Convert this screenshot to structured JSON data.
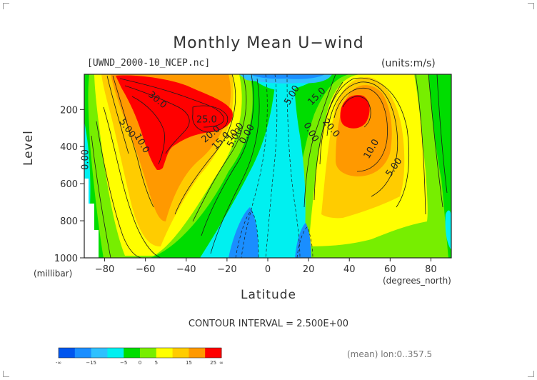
{
  "title": "Monthly Mean U−wind",
  "file_label": "[UWND_2000-10_NCEP.nc]",
  "units_label": "(units:m/s)",
  "y_axis": {
    "label": "Level",
    "unit": "(millibar)",
    "ticks": [
      "200",
      "400",
      "600",
      "800",
      "1000"
    ]
  },
  "x_axis": {
    "label": "Latitude",
    "unit": "(degrees_north)",
    "ticks": [
      "−80",
      "−60",
      "−40",
      "−20",
      "0",
      "20",
      "40",
      "60",
      "80"
    ]
  },
  "contour_interval": "CONTOUR INTERVAL = 2.500E+00",
  "mean_label": "(mean) lon:0..357.5",
  "colorbar": {
    "colors": [
      "#0055ee",
      "#1a8eff",
      "#2ec1ff",
      "#00f0f0",
      "#00dd00",
      "#77ee00",
      "#ffff00",
      "#ffcc00",
      "#ff9900",
      "#ff0000"
    ],
    "labels": [
      "-∞",
      "−15",
      "−5",
      "0",
      "5",
      "15",
      "25",
      "∞"
    ]
  },
  "chart_data": {
    "type": "heatmap",
    "title": "Monthly Mean U−wind",
    "xlabel": "Latitude",
    "ylabel": "Level",
    "x_unit": "degrees_north",
    "y_unit": "millibar",
    "value_unit": "m/s",
    "xlim": [
      -90,
      90
    ],
    "ylim": [
      1000,
      10
    ],
    "y_inverted": true,
    "contour_interval": 2.5,
    "color_levels": [
      "-inf",
      -15,
      -5,
      0,
      5,
      15,
      25,
      "inf"
    ],
    "contour_labels": [
      {
        "x": -55,
        "p": 160,
        "value": "30.0"
      },
      {
        "x": -30,
        "p": 270,
        "value": "25.0"
      },
      {
        "x": -27,
        "p": 345,
        "value": "20.0"
      },
      {
        "x": -22,
        "p": 380,
        "value": "15.0"
      },
      {
        "x": -15,
        "p": 330,
        "value": "10.0"
      },
      {
        "x": -15,
        "p": 360,
        "value": "5.00"
      },
      {
        "x": -9,
        "p": 340,
        "value": "0.00"
      },
      {
        "x": -70,
        "p": 310,
        "value": "5.00"
      },
      {
        "x": -63,
        "p": 390,
        "value": "10.0"
      },
      {
        "x": -88,
        "p": 470,
        "value": "0.00"
      },
      {
        "x": 13,
        "p": 130,
        "value": "5.00"
      },
      {
        "x": 25,
        "p": 140,
        "value": "15.0"
      },
      {
        "x": 30,
        "p": 310,
        "value": "20.0"
      },
      {
        "x": 20,
        "p": 330,
        "value": "0.00"
      },
      {
        "x": 52,
        "p": 420,
        "value": "10.0"
      },
      {
        "x": 63,
        "p": 520,
        "value": "5.00"
      }
    ],
    "features": [
      {
        "kind": "jet_max",
        "x": -52,
        "p": 150,
        "value_range": [
          25,
          32.5
        ]
      },
      {
        "kind": "jet_max",
        "x": -30,
        "p": 200,
        "value_range": [
          25,
          27.5
        ]
      },
      {
        "kind": "jet_max",
        "x": 43,
        "p": 200,
        "value_range": [
          17.5,
          20
        ]
      },
      {
        "kind": "easterly_min",
        "x": -10,
        "p": 900,
        "value_range": [
          -10,
          -5
        ]
      },
      {
        "kind": "easterly_min",
        "x": 17,
        "p": 900,
        "value_range": [
          -10,
          -5
        ]
      },
      {
        "kind": "easterly_min",
        "x": 0,
        "p": 10,
        "value_range": [
          -10,
          -5
        ]
      }
    ]
  }
}
